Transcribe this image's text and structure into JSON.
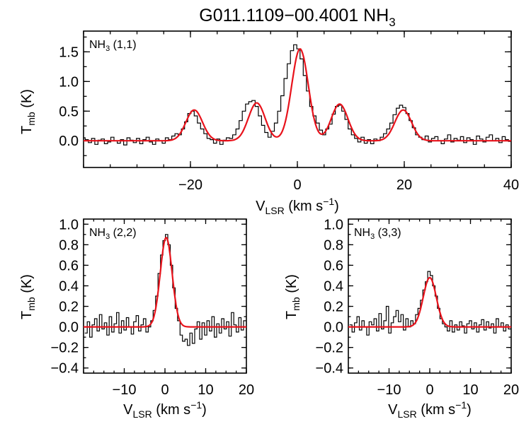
{
  "figure": {
    "title_main": "G011.1109−00.4001 NH",
    "title_sub": "3",
    "line_color": "#000000",
    "fit_color": "#e8121b"
  },
  "chart_data": [
    {
      "type": "line",
      "panel": "top",
      "label_main": "NH",
      "label_sub": "3",
      "label_rest": " (1,1)",
      "ylabel_main": "T",
      "ylabel_sub": "mb",
      "ylabel_rest": " (K)",
      "xlabel_main": "V",
      "xlabel_sub": "LSR",
      "xlabel_rest": " (km s",
      "xlabel_sup": "−1",
      "xlabel_end": ")",
      "xlim": [
        -40,
        40
      ],
      "ylim": [
        -0.45,
        1.85
      ],
      "xticks": [
        -20,
        0,
        20,
        40
      ],
      "xtick_labels": [
        "−20",
        "0",
        "20",
        "40"
      ],
      "yticks": [
        0.0,
        0.5,
        1.0,
        1.5
      ],
      "ytick_labels": [
        "0.0",
        "0.5",
        "1.0",
        "1.5"
      ],
      "fit_components": [
        {
          "center": -19.3,
          "amplitude": 0.52,
          "sigma": 1.55
        },
        {
          "center": -7.6,
          "amplitude": 0.64,
          "sigma": 1.55
        },
        {
          "center": 0.5,
          "amplitude": 1.55,
          "sigma": 1.55
        },
        {
          "center": 7.9,
          "amplitude": 0.62,
          "sigma": 1.55
        },
        {
          "center": 19.8,
          "amplitude": 0.52,
          "sigma": 1.55
        }
      ],
      "series": [
        {
          "name": "observed",
          "x": [
            -40.0,
            -39.4,
            -38.8,
            -38.2,
            -37.6,
            -37.0,
            -36.4,
            -35.8,
            -35.2,
            -34.6,
            -34.0,
            -33.4,
            -32.8,
            -32.2,
            -31.6,
            -31.0,
            -30.4,
            -29.8,
            -29.2,
            -28.6,
            -28.0,
            -27.4,
            -26.8,
            -26.2,
            -25.6,
            -25.0,
            -24.4,
            -23.8,
            -23.2,
            -22.6,
            -22.0,
            -21.4,
            -20.8,
            -20.2,
            -19.6,
            -19.0,
            -18.4,
            -17.8,
            -17.2,
            -16.6,
            -16.0,
            -15.4,
            -14.8,
            -14.2,
            -13.6,
            -13.0,
            -12.4,
            -11.8,
            -11.2,
            -10.6,
            -10.0,
            -9.4,
            -8.8,
            -8.2,
            -7.6,
            -7.0,
            -6.4,
            -5.8,
            -5.2,
            -4.6,
            -4.0,
            -3.4,
            -2.8,
            -2.2,
            -1.6,
            -1.0,
            -0.4,
            0.2,
            0.8,
            1.4,
            2.0,
            2.6,
            3.2,
            3.8,
            4.4,
            5.0,
            5.6,
            6.2,
            6.8,
            7.4,
            8.0,
            8.6,
            9.2,
            9.8,
            10.4,
            11.0,
            11.6,
            12.2,
            12.8,
            13.4,
            14.0,
            14.6,
            15.2,
            15.8,
            16.4,
            17.0,
            17.6,
            18.2,
            18.8,
            19.4,
            20.0,
            20.6,
            21.2,
            21.8,
            22.4,
            23.0,
            23.6,
            24.2,
            24.8,
            25.4,
            26.0,
            26.6,
            27.2,
            27.8,
            28.4,
            29.0,
            29.6,
            30.2,
            30.8,
            31.4,
            32.0,
            32.6,
            33.2,
            33.8,
            34.4,
            35.0,
            35.6,
            36.2,
            36.8,
            37.4,
            38.0,
            38.6,
            39.2,
            39.8
          ],
          "values": [
            0.05,
            0.02,
            -0.03,
            0.04,
            -0.06,
            0.01,
            0.03,
            -0.05,
            -0.02,
            0.06,
            0.0,
            -0.04,
            0.02,
            -0.07,
            0.05,
            0.01,
            -0.03,
            0.04,
            -0.05,
            0.02,
            0.06,
            -0.02,
            -0.06,
            0.03,
            0.0,
            -0.04,
            0.05,
            0.02,
            0.08,
            0.12,
            0.1,
            0.2,
            0.32,
            0.46,
            0.5,
            0.42,
            0.3,
            0.2,
            0.12,
            0.04,
            0.02,
            -0.04,
            0.03,
            -0.06,
            0.01,
            0.05,
            0.04,
            0.1,
            0.2,
            0.34,
            0.5,
            0.62,
            0.66,
            0.68,
            0.58,
            0.42,
            0.26,
            0.14,
            0.06,
            0.16,
            0.3,
            0.5,
            0.76,
            1.05,
            1.3,
            1.52,
            1.62,
            1.55,
            1.38,
            1.1,
            0.84,
            0.58,
            0.42,
            0.3,
            0.18,
            0.1,
            0.2,
            0.28,
            0.45,
            0.58,
            0.6,
            0.5,
            0.36,
            0.2,
            0.1,
            0.04,
            -0.02,
            0.06,
            -0.04,
            0.02,
            -0.05,
            0.03,
            0.0,
            0.06,
            0.12,
            0.2,
            0.3,
            0.44,
            0.55,
            0.6,
            0.56,
            0.46,
            0.34,
            0.22,
            0.1,
            0.06,
            0.02,
            0.08,
            -0.02,
            0.04,
            0.07,
            0.0,
            -0.05,
            0.03,
            0.1,
            -0.02,
            0.04,
            0.01,
            0.07,
            -0.03,
            0.05,
            0.02,
            -0.06,
            0.08,
            0.03,
            -0.02,
            0.06,
            0.1,
            0.0,
            0.04,
            -0.03,
            0.07,
            0.02,
            -0.01
          ]
        }
      ]
    },
    {
      "type": "line",
      "panel": "bottom-left",
      "label_main": "NH",
      "label_sub": "3",
      "label_rest": " (2,2)",
      "ylabel_main": "T",
      "ylabel_sub": "mb",
      "ylabel_rest": " (K)",
      "xlabel_main": "V",
      "xlabel_sub": "LSR",
      "xlabel_rest": " (km s",
      "xlabel_sup": "−1",
      "xlabel_end": ")",
      "xlim": [
        -20,
        20
      ],
      "ylim": [
        -0.45,
        1.05
      ],
      "xticks": [
        -10,
        0,
        10,
        20
      ],
      "xtick_labels": [
        "−10",
        "0",
        "10",
        "20"
      ],
      "yticks": [
        -0.4,
        -0.2,
        0.0,
        0.2,
        0.4,
        0.6,
        0.8,
        1.0
      ],
      "ytick_labels": [
        "−0.4",
        "−0.2",
        "0.0",
        "0.2",
        "0.4",
        "0.6",
        "0.8",
        "1.0"
      ],
      "fit_components": [
        {
          "center": 0.3,
          "amplitude": 0.87,
          "sigma": 1.45
        }
      ],
      "series": [
        {
          "name": "observed",
          "x": [
            -19.4,
            -18.8,
            -18.2,
            -17.6,
            -17.0,
            -16.4,
            -15.8,
            -15.2,
            -14.6,
            -14.0,
            -13.4,
            -12.8,
            -12.2,
            -11.6,
            -11.0,
            -10.4,
            -9.8,
            -9.2,
            -8.6,
            -8.0,
            -7.4,
            -6.8,
            -6.2,
            -5.6,
            -5.0,
            -4.4,
            -3.8,
            -3.2,
            -2.6,
            -2.0,
            -1.4,
            -0.8,
            -0.2,
            0.4,
            1.0,
            1.6,
            2.2,
            2.8,
            3.4,
            4.0,
            4.6,
            5.2,
            5.8,
            6.4,
            7.0,
            7.6,
            8.2,
            8.8,
            9.4,
            10.0,
            10.6,
            11.2,
            11.8,
            12.4,
            13.0,
            13.6,
            14.2,
            14.8,
            15.4,
            16.0,
            16.6,
            17.2,
            17.8,
            18.4,
            19.0,
            19.6
          ],
          "values": [
            -0.06,
            0.05,
            -0.1,
            0.02,
            0.08,
            -0.04,
            0.12,
            -0.02,
            0.04,
            -0.08,
            0.1,
            -0.05,
            0.03,
            0.14,
            -0.06,
            0.06,
            -0.03,
            0.09,
            0.0,
            -0.07,
            0.05,
            0.11,
            -0.04,
            0.02,
            0.08,
            -0.05,
            0.0,
            0.06,
            0.16,
            0.3,
            0.52,
            0.7,
            0.84,
            0.9,
            0.8,
            0.6,
            0.38,
            0.18,
            0.06,
            -0.08,
            -0.14,
            -0.12,
            -0.18,
            -0.06,
            -0.16,
            -0.02,
            0.05,
            -0.12,
            0.04,
            -0.08,
            0.06,
            -0.04,
            0.1,
            -0.1,
            0.03,
            -0.06,
            0.08,
            -0.02,
            0.05,
            -0.09,
            0.14,
            0.02,
            -0.05,
            0.09,
            -0.03,
            0.06
          ]
        }
      ]
    },
    {
      "type": "line",
      "panel": "bottom-right",
      "label_main": "NH",
      "label_sub": "3",
      "label_rest": " (3,3)",
      "ylabel_main": "T",
      "ylabel_sub": "mb",
      "ylabel_rest": " (K)",
      "xlabel_main": "V",
      "xlabel_sub": "LSR",
      "xlabel_rest": " (km s",
      "xlabel_sup": "−1",
      "xlabel_end": ")",
      "xlim": [
        -20,
        20
      ],
      "ylim": [
        -0.45,
        1.05
      ],
      "xticks": [
        -10,
        0,
        10,
        20
      ],
      "xtick_labels": [
        "−10",
        "0",
        "10",
        "20"
      ],
      "yticks": [
        -0.4,
        -0.2,
        0.0,
        0.2,
        0.4,
        0.6,
        0.8,
        1.0
      ],
      "ytick_labels": [
        "−0.4",
        "−0.2",
        "0.0",
        "0.2",
        "0.4",
        "0.6",
        "0.8",
        "1.0"
      ],
      "fit_components": [
        {
          "center": 0.0,
          "amplitude": 0.48,
          "sigma": 1.6
        }
      ],
      "series": [
        {
          "name": "observed",
          "x": [
            -19.4,
            -18.8,
            -18.2,
            -17.6,
            -17.0,
            -16.4,
            -15.8,
            -15.2,
            -14.6,
            -14.0,
            -13.4,
            -12.8,
            -12.2,
            -11.6,
            -11.0,
            -10.4,
            -9.8,
            -9.2,
            -8.6,
            -8.0,
            -7.4,
            -6.8,
            -6.2,
            -5.6,
            -5.0,
            -4.4,
            -3.8,
            -3.2,
            -2.6,
            -2.0,
            -1.4,
            -0.8,
            -0.2,
            0.4,
            1.0,
            1.6,
            2.2,
            2.8,
            3.4,
            4.0,
            4.6,
            5.2,
            5.8,
            6.4,
            7.0,
            7.6,
            8.2,
            8.8,
            9.4,
            10.0,
            10.6,
            11.2,
            11.8,
            12.4,
            13.0,
            13.6,
            14.2,
            14.8,
            15.4,
            16.0,
            16.6,
            17.2,
            17.8,
            18.4,
            19.0,
            19.6
          ],
          "values": [
            0.02,
            -0.05,
            0.04,
            0.1,
            -0.03,
            0.06,
            0.0,
            -0.08,
            0.05,
            0.02,
            0.08,
            -0.04,
            0.13,
            -0.02,
            0.06,
            0.2,
            -0.06,
            0.04,
            0.1,
            0.16,
            0.05,
            0.12,
            -0.03,
            0.08,
            0.0,
            0.06,
            0.03,
            0.12,
            0.18,
            0.26,
            0.36,
            0.44,
            0.54,
            0.5,
            0.4,
            0.3,
            0.18,
            0.08,
            0.03,
            0.0,
            -0.04,
            0.06,
            -0.05,
            0.02,
            -0.03,
            0.05,
            0.01,
            -0.06,
            0.03,
            0.06,
            -0.02,
            0.04,
            -0.05,
            0.02,
            0.07,
            -0.03,
            0.05,
            -0.01,
            0.03,
            -0.06,
            0.08,
            0.0,
            0.04,
            -0.04,
            0.02,
            -0.02
          ]
        }
      ]
    }
  ]
}
